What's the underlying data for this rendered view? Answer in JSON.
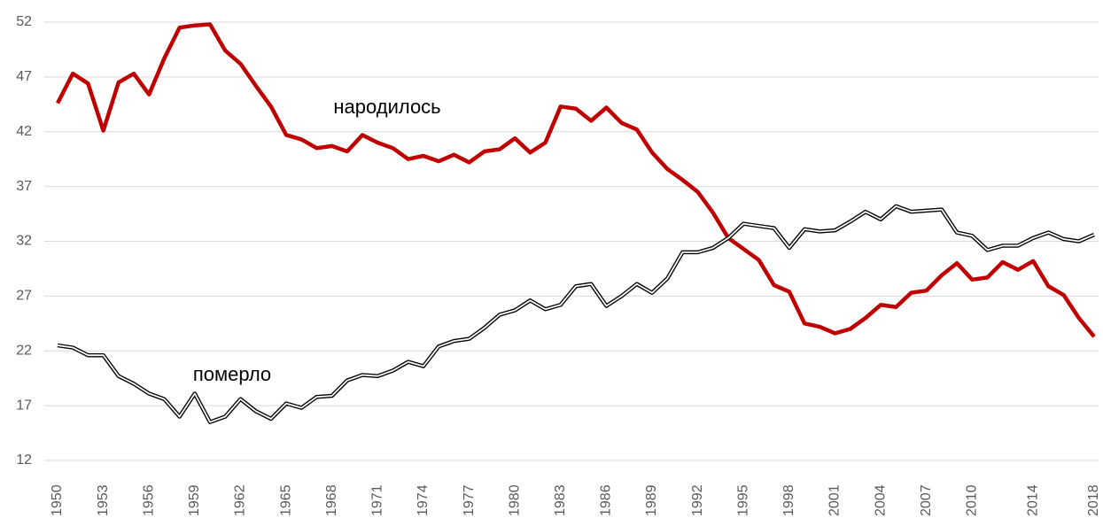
{
  "chart_data": {
    "type": "line",
    "categories": [
      "1950",
      null,
      null,
      "1953",
      null,
      null,
      "1956",
      null,
      null,
      "1959",
      null,
      null,
      "1962",
      null,
      null,
      "1965",
      null,
      null,
      "1968",
      null,
      null,
      "1971",
      null,
      null,
      "1974",
      null,
      null,
      "1977",
      null,
      null,
      "1980",
      null,
      null,
      "1983",
      null,
      null,
      "1986",
      null,
      null,
      "1989",
      null,
      null,
      "1992",
      null,
      null,
      "1995",
      null,
      null,
      "1998",
      null,
      null,
      "2001",
      null,
      null,
      "2004",
      null,
      null,
      "2007",
      null,
      null,
      "2010",
      null,
      null,
      null,
      "2014",
      null,
      null,
      null,
      "2018"
    ],
    "series": [
      {
        "name": "народилось",
        "color": "#c00000",
        "values": [
          44.6,
          47.3,
          46.4,
          42.1,
          46.5,
          47.3,
          45.4,
          48.7,
          51.5,
          51.7,
          51.8,
          49.4,
          48.2,
          46.2,
          44.3,
          41.7,
          41.3,
          40.5,
          40.7,
          40.2,
          41.7,
          41.0,
          40.5,
          39.5,
          39.8,
          39.3,
          39.9,
          39.2,
          40.2,
          40.4,
          41.4,
          40.1,
          41.0,
          44.3,
          44.1,
          43.0,
          44.2,
          42.8,
          42.2,
          40.1,
          38.6,
          37.6,
          36.5,
          34.6,
          32.3,
          31.3,
          30.3,
          28.0,
          27.4,
          24.5,
          24.2,
          23.6,
          24.0,
          25.0,
          26.2,
          26.0,
          27.3,
          27.5,
          28.9,
          30.0,
          28.5,
          28.7,
          30.1,
          29.4,
          30.2,
          27.9,
          27.1,
          25.0,
          23.3
        ]
      },
      {
        "name": "померло",
        "color": "#000000",
        "values": [
          22.5,
          22.3,
          21.6,
          21.6,
          19.7,
          19.0,
          18.1,
          17.6,
          16.0,
          18.1,
          15.5,
          16.0,
          17.6,
          16.5,
          15.8,
          17.2,
          16.8,
          17.8,
          17.9,
          19.3,
          19.8,
          19.7,
          20.2,
          21.0,
          20.6,
          22.4,
          22.9,
          23.1,
          24.1,
          25.3,
          25.7,
          26.6,
          25.8,
          26.2,
          27.9,
          28.1,
          26.1,
          27.0,
          28.1,
          27.3,
          28.6,
          31.0,
          31.0,
          31.4,
          32.3,
          33.6,
          33.4,
          33.2,
          31.4,
          33.1,
          32.9,
          33.0,
          33.8,
          34.7,
          34.0,
          35.2,
          34.7,
          34.8,
          34.9,
          32.8,
          32.5,
          31.2,
          31.6,
          31.6,
          32.3,
          32.8,
          32.2,
          32.0,
          32.6
        ]
      }
    ],
    "ylim": [
      12,
      52
    ],
    "yticks": [
      12,
      17,
      22,
      27,
      32,
      37,
      42,
      47,
      52
    ],
    "grid": true
  }
}
